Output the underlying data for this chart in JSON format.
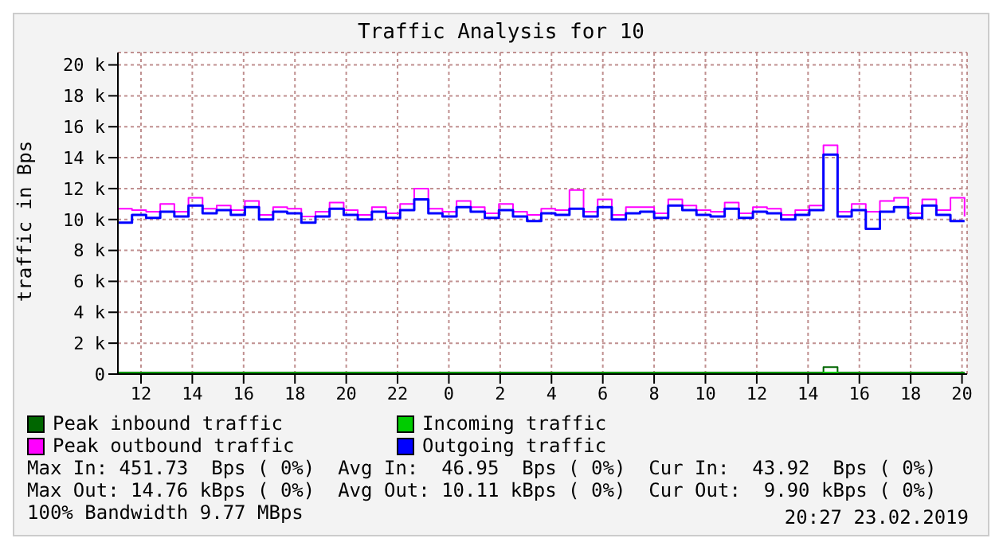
{
  "chart_data": {
    "type": "step",
    "title": "Traffic Analysis for 10",
    "ylabel": "traffic in Bps",
    "x": [
      "2019-02-22T11:06",
      "2019-02-22T11:39",
      "2019-02-22T12:12",
      "2019-02-22T12:45",
      "2019-02-22T13:18",
      "2019-02-22T13:51",
      "2019-02-22T14:24",
      "2019-02-22T14:57",
      "2019-02-22T15:30",
      "2019-02-22T16:03",
      "2019-02-22T16:36",
      "2019-02-22T17:09",
      "2019-02-22T17:42",
      "2019-02-22T18:15",
      "2019-02-22T18:48",
      "2019-02-22T19:21",
      "2019-02-22T19:54",
      "2019-02-22T20:27",
      "2019-02-22T21:00",
      "2019-02-22T21:33",
      "2019-02-22T22:06",
      "2019-02-22T22:39",
      "2019-02-22T23:12",
      "2019-02-22T23:45",
      "2019-02-23T00:18",
      "2019-02-23T00:51",
      "2019-02-23T01:24",
      "2019-02-23T01:57",
      "2019-02-23T02:30",
      "2019-02-23T03:03",
      "2019-02-23T03:36",
      "2019-02-23T04:09",
      "2019-02-23T04:42",
      "2019-02-23T05:15",
      "2019-02-23T05:48",
      "2019-02-23T06:21",
      "2019-02-23T06:54",
      "2019-02-23T07:27",
      "2019-02-23T08:00",
      "2019-02-23T08:33",
      "2019-02-23T09:06",
      "2019-02-23T09:39",
      "2019-02-23T10:12",
      "2019-02-23T10:45",
      "2019-02-23T11:18",
      "2019-02-23T11:51",
      "2019-02-23T12:24",
      "2019-02-23T12:57",
      "2019-02-23T13:30",
      "2019-02-23T14:03",
      "2019-02-23T14:36",
      "2019-02-23T15:09",
      "2019-02-23T15:42",
      "2019-02-23T16:15",
      "2019-02-23T16:48",
      "2019-02-23T17:21",
      "2019-02-23T17:54",
      "2019-02-23T18:27",
      "2019-02-23T19:00",
      "2019-02-23T19:33",
      "2019-02-23T20:06"
    ],
    "series": [
      {
        "name": "Peak inbound traffic",
        "color": "#006600",
        "values": [
          100,
          100,
          100,
          100,
          100,
          100,
          100,
          100,
          100,
          100,
          100,
          100,
          100,
          100,
          100,
          100,
          100,
          100,
          100,
          100,
          100,
          100,
          100,
          100,
          100,
          100,
          100,
          100,
          100,
          100,
          100,
          100,
          100,
          100,
          100,
          100,
          100,
          100,
          100,
          100,
          100,
          100,
          100,
          100,
          100,
          100,
          100,
          100,
          100,
          100,
          450,
          100,
          100,
          100,
          100,
          100,
          100,
          100,
          100,
          100,
          100
        ]
      },
      {
        "name": "Incoming traffic",
        "color": "#00cc00",
        "values": [
          50,
          50,
          50,
          50,
          50,
          50,
          50,
          50,
          50,
          50,
          50,
          50,
          50,
          50,
          50,
          50,
          50,
          50,
          50,
          50,
          50,
          50,
          50,
          50,
          50,
          50,
          50,
          50,
          50,
          50,
          50,
          50,
          50,
          50,
          50,
          50,
          50,
          50,
          50,
          50,
          50,
          50,
          50,
          50,
          50,
          50,
          50,
          50,
          50,
          50,
          100,
          50,
          50,
          50,
          50,
          50,
          50,
          50,
          50,
          50,
          50
        ]
      },
      {
        "name": "Peak outbound traffic",
        "color": "#ff00ff",
        "values": [
          10700,
          10600,
          10500,
          11000,
          10500,
          11400,
          10700,
          10900,
          10600,
          11200,
          10300,
          10800,
          10700,
          10200,
          10500,
          11100,
          10600,
          10300,
          10800,
          10400,
          11000,
          12000,
          10700,
          10500,
          11200,
          10800,
          10400,
          11000,
          10500,
          10300,
          10700,
          10600,
          11900,
          10500,
          11300,
          10300,
          10800,
          10800,
          10400,
          11300,
          10900,
          10600,
          10500,
          11100,
          10400,
          10800,
          10700,
          10300,
          10600,
          10900,
          14800,
          10500,
          11000,
          10500,
          11200,
          11400,
          10400,
          11300,
          10600,
          11400,
          10200
        ]
      },
      {
        "name": "Outgoing traffic",
        "color": "#0000ff",
        "values": [
          9800,
          10300,
          10100,
          10500,
          10200,
          10900,
          10400,
          10600,
          10300,
          10800,
          10000,
          10500,
          10400,
          9800,
          10200,
          10700,
          10300,
          10000,
          10500,
          10100,
          10600,
          11300,
          10400,
          10200,
          10800,
          10500,
          10100,
          10600,
          10200,
          9900,
          10400,
          10300,
          10700,
          10200,
          10800,
          10000,
          10400,
          10500,
          10100,
          10900,
          10600,
          10300,
          10200,
          10700,
          10100,
          10500,
          10400,
          10000,
          10300,
          10600,
          14200,
          10200,
          10600,
          9400,
          10500,
          10800,
          10100,
          10900,
          10300,
          9900,
          9900
        ]
      }
    ],
    "xlim": [
      "2019-02-22T11:06",
      "2019-02-23T20:12"
    ],
    "xticks": [
      {
        "value": "2019-02-22T12:00",
        "label": "12"
      },
      {
        "value": "2019-02-22T14:00",
        "label": "14"
      },
      {
        "value": "2019-02-22T16:00",
        "label": "16"
      },
      {
        "value": "2019-02-22T18:00",
        "label": "18"
      },
      {
        "value": "2019-02-22T20:00",
        "label": "20"
      },
      {
        "value": "2019-02-22T22:00",
        "label": "22"
      },
      {
        "value": "2019-02-23T00:00",
        "label": "0"
      },
      {
        "value": "2019-02-23T02:00",
        "label": "2"
      },
      {
        "value": "2019-02-23T04:00",
        "label": "4"
      },
      {
        "value": "2019-02-23T06:00",
        "label": "6"
      },
      {
        "value": "2019-02-23T08:00",
        "label": "8"
      },
      {
        "value": "2019-02-23T10:00",
        "label": "10"
      },
      {
        "value": "2019-02-23T12:00",
        "label": "12"
      },
      {
        "value": "2019-02-23T14:00",
        "label": "14"
      },
      {
        "value": "2019-02-23T16:00",
        "label": "16"
      },
      {
        "value": "2019-02-23T18:00",
        "label": "18"
      },
      {
        "value": "2019-02-23T20:00",
        "label": "20"
      }
    ],
    "ylim": [
      0,
      20800
    ],
    "yticks": [
      0,
      {
        "value": 2000,
        "label": "2 k"
      },
      {
        "value": 4000,
        "label": "4 k"
      },
      {
        "value": 6000,
        "label": "6 k"
      },
      {
        "value": 8000,
        "label": "8 k"
      },
      {
        "value": 10000,
        "label": "10 k"
      },
      {
        "value": 12000,
        "label": "12 k"
      },
      {
        "value": 14000,
        "label": "14 k"
      },
      {
        "value": 16000,
        "label": "16 k"
      },
      {
        "value": 18000,
        "label": "18 k"
      },
      {
        "value": 20000,
        "label": "20 k"
      }
    ],
    "grid": true,
    "legend": "bottom",
    "marker": "none",
    "line_style": "solid",
    "annotations": [
      "Max In: 451.73  Bps ( 0%)  Avg In:  46.95  Bps ( 0%)  Cur In:  43.92  Bps ( 0%)",
      "Max Out: 14.76 kBps ( 0%)  Avg Out: 10.11 kBps ( 0%)  Cur Out:  9.90 kBps ( 0%)",
      "100% Bandwidth 9.77 MBps",
      "20:27 23.02.2019"
    ]
  }
}
